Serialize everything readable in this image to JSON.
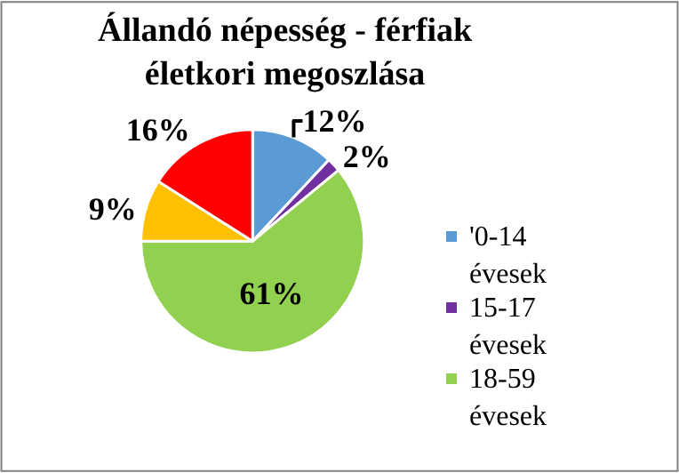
{
  "chart_data": {
    "type": "pie",
    "title": "Állandó népesség - férfiak életkori megoszlása",
    "categories": [
      "'0-14 évesek",
      "15-17 évesek",
      "18-59 évesek",
      null,
      null
    ],
    "values": [
      12,
      2,
      61,
      9,
      16
    ],
    "value_labels": [
      "12%",
      "2%",
      "61%",
      "9%",
      "16%"
    ],
    "colors": [
      "#5b9bd5",
      "#7030a0",
      "#92d050",
      "#ffc000",
      "#ff0000"
    ],
    "legend": "right"
  }
}
